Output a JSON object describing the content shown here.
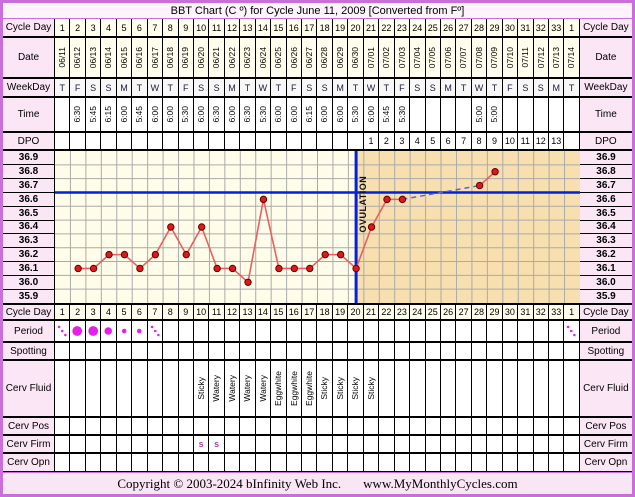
{
  "title": "BBT Chart (C º) for Cycle June 11, 2009  [Converted from Fº]",
  "row_labels": {
    "cycle_day": "Cycle Day",
    "date": "Date",
    "weekday": "WeekDay",
    "time": "Time",
    "dpo": "DPO",
    "period": "Period",
    "spotting": "Spotting",
    "cerv_fluid": "Cerv Fluid",
    "cerv_pos": "Cerv Pos",
    "cerv_firm": "Cerv Firm",
    "cerv_opn": "Cerv Opn"
  },
  "cycle_days": [
    "1",
    "2",
    "3",
    "4",
    "5",
    "6",
    "7",
    "8",
    "9",
    "10",
    "11",
    "12",
    "13",
    "14",
    "15",
    "16",
    "17",
    "18",
    "19",
    "20",
    "21",
    "22",
    "23",
    "24",
    "25",
    "26",
    "27",
    "28",
    "29",
    "30",
    "31",
    "32",
    "33",
    "1"
  ],
  "dates": [
    "06/11",
    "06/12",
    "06/13",
    "06/14",
    "06/15",
    "06/16",
    "06/17",
    "06/18",
    "06/19",
    "06/20",
    "06/21",
    "06/22",
    "06/23",
    "06/24",
    "06/25",
    "06/26",
    "06/27",
    "06/28",
    "06/29",
    "06/30",
    "07/01",
    "07/02",
    "07/03",
    "07/04",
    "07/05",
    "07/06",
    "07/07",
    "07/08",
    "07/09",
    "07/10",
    "07/11",
    "07/12",
    "07/13",
    "07/14"
  ],
  "weekdays": [
    "T",
    "F",
    "S",
    "S",
    "M",
    "T",
    "W",
    "T",
    "F",
    "S",
    "S",
    "M",
    "T",
    "W",
    "T",
    "F",
    "S",
    "S",
    "M",
    "T",
    "W",
    "T",
    "F",
    "S",
    "S",
    "M",
    "T",
    "W",
    "T",
    "F",
    "S",
    "S",
    "M",
    "T"
  ],
  "times": [
    "",
    "6:30",
    "5:45",
    "6:15",
    "6:00",
    "5:45",
    "6:00",
    "6:00",
    "5:30",
    "6:00",
    "6:30",
    "6:00",
    "6:30",
    "5:30",
    "6:00",
    "6:00",
    "6:15",
    "6:00",
    "6:00",
    "5:30",
    "6:00",
    "5:45",
    "5:30",
    "",
    "",
    "",
    "",
    "5:00",
    "5:00",
    "",
    "",
    "",
    "",
    ""
  ],
  "dpo": [
    "",
    "",
    "",
    "",
    "",
    "",
    "",
    "",
    "",
    "",
    "",
    "",
    "",
    "",
    "",
    "",
    "",
    "",
    "",
    "",
    "1",
    "2",
    "3",
    "4",
    "5",
    "6",
    "7",
    "8",
    "9",
    "10",
    "11",
    "12",
    "13",
    ""
  ],
  "chart_data": {
    "type": "line",
    "title": "Basal body temperature by cycle day (°C)",
    "y_labels": [
      "36.9",
      "36.8",
      "36.7",
      "36.6",
      "36.5",
      "36.4",
      "36.3",
      "36.2",
      "36.1",
      "36.0",
      "35.9"
    ],
    "y_max": 36.9,
    "y_min": 35.9,
    "y_step": 0.1,
    "x_count": 34,
    "points": [
      {
        "day": 2,
        "temp": 36.1
      },
      {
        "day": 3,
        "temp": 36.1
      },
      {
        "day": 4,
        "temp": 36.2
      },
      {
        "day": 5,
        "temp": 36.2
      },
      {
        "day": 6,
        "temp": 36.1
      },
      {
        "day": 7,
        "temp": 36.2
      },
      {
        "day": 8,
        "temp": 36.4
      },
      {
        "day": 9,
        "temp": 36.2
      },
      {
        "day": 10,
        "temp": 36.4
      },
      {
        "day": 11,
        "temp": 36.1
      },
      {
        "day": 12,
        "temp": 36.1
      },
      {
        "day": 13,
        "temp": 36.0
      },
      {
        "day": 14,
        "temp": 36.6
      },
      {
        "day": 15,
        "temp": 36.1
      },
      {
        "day": 16,
        "temp": 36.1
      },
      {
        "day": 17,
        "temp": 36.1
      },
      {
        "day": 18,
        "temp": 36.2
      },
      {
        "day": 19,
        "temp": 36.2
      },
      {
        "day": 20,
        "temp": 36.1
      },
      {
        "day": 21,
        "temp": 36.4
      },
      {
        "day": 22,
        "temp": 36.6
      },
      {
        "day": 23,
        "temp": 36.6
      },
      {
        "day": 28,
        "temp": 36.7
      },
      {
        "day": 29,
        "temp": 36.8
      }
    ],
    "dashed_segment": {
      "from_day": 23,
      "to_day": 28
    },
    "coverline_temp": 36.65,
    "ovulation_day": 20,
    "ovulation_label": "OVULATION",
    "legend": "none",
    "grid": true
  },
  "period": [
    {
      "day": 1,
      "flow": "spotting"
    },
    {
      "day": 2,
      "flow": "heavy"
    },
    {
      "day": 3,
      "flow": "heavy"
    },
    {
      "day": 4,
      "flow": "medium"
    },
    {
      "day": 5,
      "flow": "light"
    },
    {
      "day": 6,
      "flow": "light"
    },
    {
      "day": 7,
      "flow": "spotting"
    },
    {
      "day": 34,
      "flow": "spotting"
    }
  ],
  "spotting": [],
  "cerv_fluid": [
    {
      "day": 10,
      "value": "Sticky"
    },
    {
      "day": 11,
      "value": "Watery"
    },
    {
      "day": 12,
      "value": "Watery"
    },
    {
      "day": 13,
      "value": "Watery"
    },
    {
      "day": 14,
      "value": "Watery"
    },
    {
      "day": 15,
      "value": "Eggwhite"
    },
    {
      "day": 16,
      "value": "Eggwhite"
    },
    {
      "day": 17,
      "value": "Eggwhite"
    },
    {
      "day": 18,
      "value": "Sticky"
    },
    {
      "day": 19,
      "value": "Sticky"
    },
    {
      "day": 20,
      "value": "Sticky"
    },
    {
      "day": 21,
      "value": "Sticky"
    }
  ],
  "cerv_pos": [],
  "cerv_firm": [
    {
      "day": 10,
      "value": "s"
    },
    {
      "day": 11,
      "value": "s"
    }
  ],
  "cerv_opn": [],
  "footer": {
    "copyright": "Copyright © 2003-2024 bInfinity Web Inc.",
    "site": "www.MyMonthlyCycles.com"
  },
  "colors": {
    "frame": "#c96fd9",
    "title_bg": "#fdf4fb",
    "label_bg": "#fbe6f6",
    "ivory_bg": "#fffdeb",
    "weekday_bg": "#f7f7f7",
    "chart_follicular_bg": "#fffde9",
    "chart_luteal_bg": "#f8dfaf",
    "grid_line": "#aaaaaa",
    "coverline_blue": "#0022dd",
    "dashed_blue": "#5a62e0",
    "temp_line_red": "#e86060",
    "point_fill": "#dd1a1a",
    "point_stroke": "#660000",
    "period_magenta": "#e51fe5",
    "cerv_firm_purple": "#aa44aa",
    "footer_bg": "#f8e6f4"
  }
}
